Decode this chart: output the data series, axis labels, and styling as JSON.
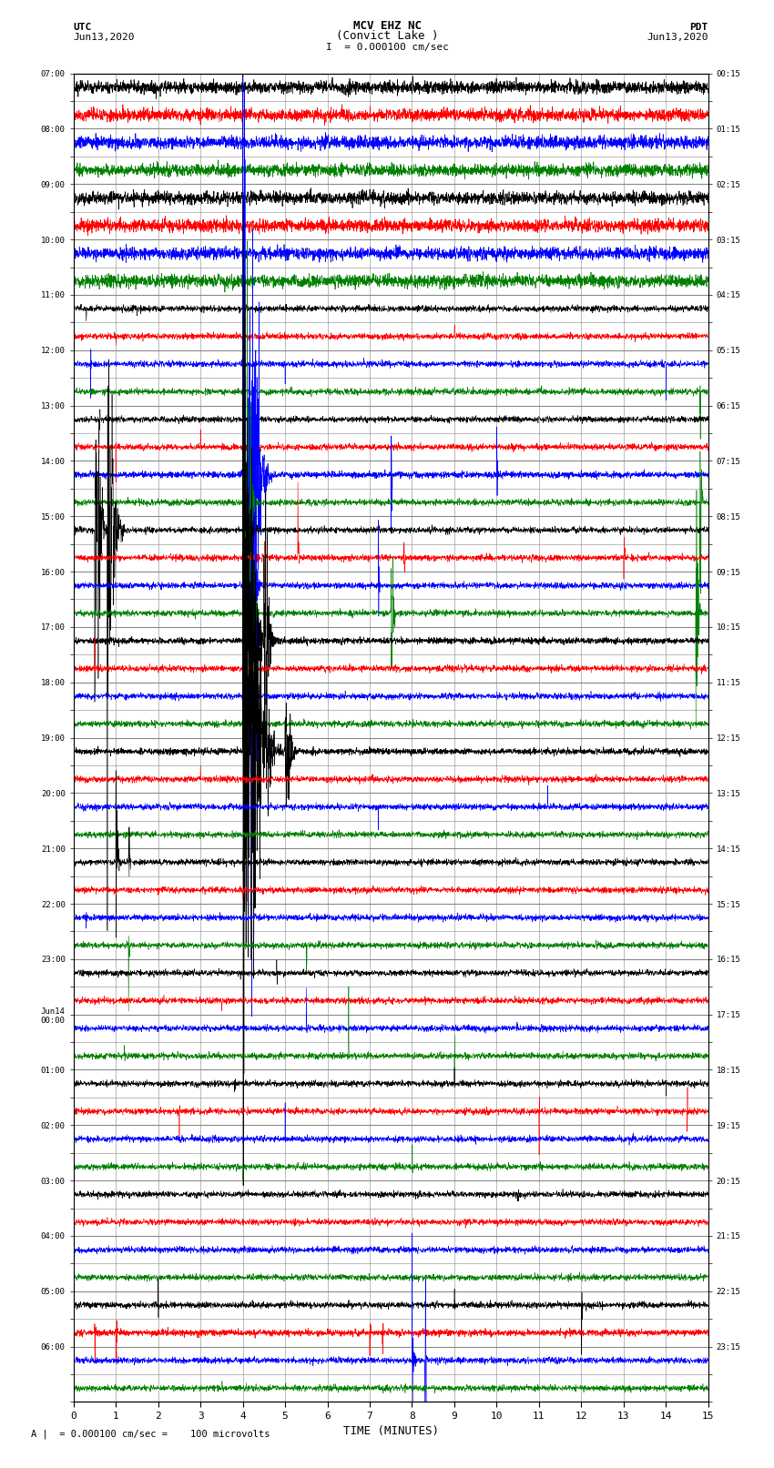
{
  "title_line1": "MCV EHZ NC",
  "title_line2": "(Convict Lake )",
  "title_line3": "I  = 0.000100 cm/sec",
  "label_left_top": "UTC",
  "label_left_date": "Jun13,2020",
  "label_right_top": "PDT",
  "label_right_date": "Jun13,2020",
  "xlabel": "TIME (MINUTES)",
  "footer": "= 0.000100 cm/sec =    100 microvolts",
  "utc_labels": [
    "07:00",
    "",
    "08:00",
    "",
    "09:00",
    "",
    "10:00",
    "",
    "11:00",
    "",
    "12:00",
    "",
    "13:00",
    "",
    "14:00",
    "",
    "15:00",
    "",
    "16:00",
    "",
    "17:00",
    "",
    "18:00",
    "",
    "19:00",
    "",
    "20:00",
    "",
    "21:00",
    "",
    "22:00",
    "",
    "23:00",
    "",
    "Jun14\n00:00",
    "",
    "01:00",
    "",
    "02:00",
    "",
    "03:00",
    "",
    "04:00",
    "",
    "05:00",
    "",
    "06:00",
    ""
  ],
  "pdt_labels": [
    "00:15",
    "",
    "01:15",
    "",
    "02:15",
    "",
    "03:15",
    "",
    "04:15",
    "",
    "05:15",
    "",
    "06:15",
    "",
    "07:15",
    "",
    "08:15",
    "",
    "09:15",
    "",
    "10:15",
    "",
    "11:15",
    "",
    "12:15",
    "",
    "13:15",
    "",
    "14:15",
    "",
    "15:15",
    "",
    "16:15",
    "",
    "17:15",
    "",
    "18:15",
    "",
    "19:15",
    "",
    "20:15",
    "",
    "21:15",
    "",
    "22:15",
    "",
    "23:15",
    ""
  ],
  "n_rows": 48,
  "x_min": 0,
  "x_max": 15,
  "bg_color": "#ffffff",
  "grid_color": "#888888",
  "row_noise": [
    0.3,
    0.35,
    0.3,
    0.28,
    0.32,
    0.3,
    0.28,
    0.25,
    0.04,
    0.04,
    0.04,
    0.04,
    0.04,
    0.04,
    0.04,
    0.04,
    0.02,
    0.02,
    0.02,
    0.02,
    0.02,
    0.02,
    0.02,
    0.02,
    0.02,
    0.02,
    0.02,
    0.02,
    0.02,
    0.02,
    0.02,
    0.02,
    0.02,
    0.02,
    0.02,
    0.02,
    0.02,
    0.02,
    0.02,
    0.02,
    0.02,
    0.02,
    0.02,
    0.02,
    0.02,
    0.02,
    0.02,
    0.02
  ]
}
